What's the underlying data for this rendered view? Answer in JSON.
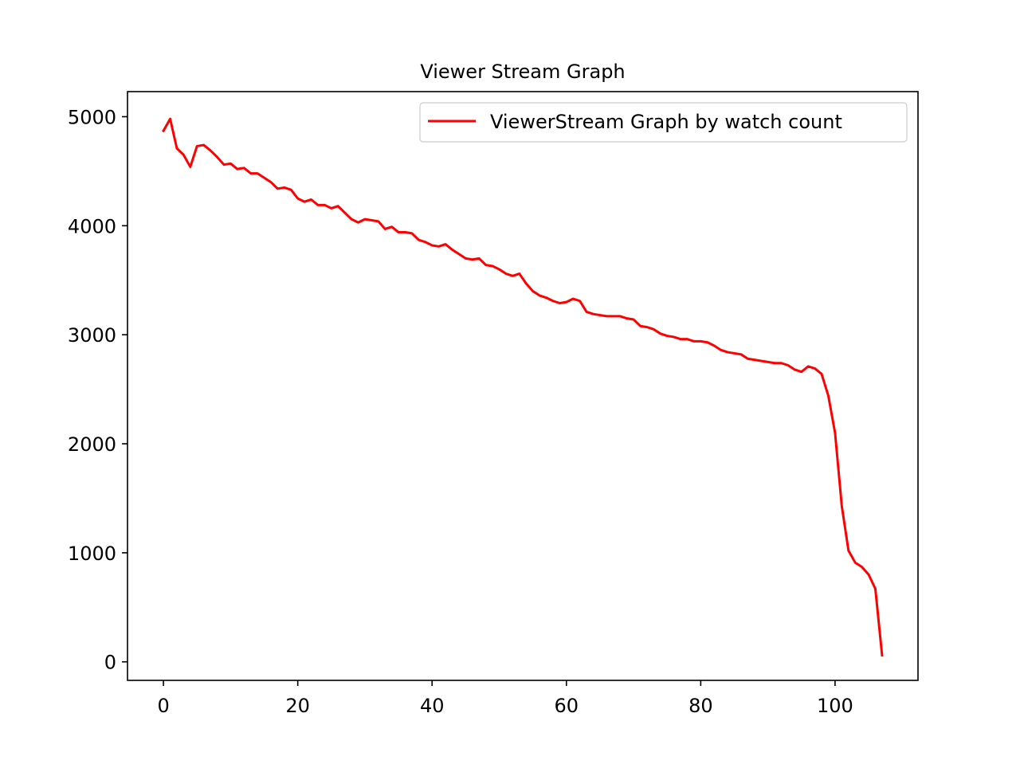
{
  "chart_data": {
    "type": "line",
    "title": "Viewer Stream Graph",
    "xlabel": "",
    "ylabel": "",
    "xlim": [
      -5.35,
      112.35
    ],
    "ylim": [
      -170,
      5230
    ],
    "x_ticks": [
      0,
      20,
      40,
      60,
      80,
      100
    ],
    "y_ticks": [
      0,
      1000,
      2000,
      3000,
      4000,
      5000
    ],
    "grid": false,
    "legend_position": "upper right",
    "series": [
      {
        "name": "ViewerStream Graph by watch count",
        "color": "#ff0000",
        "x": [
          0,
          1,
          2,
          3,
          4,
          5,
          6,
          7,
          8,
          9,
          10,
          11,
          12,
          13,
          14,
          15,
          16,
          17,
          18,
          19,
          20,
          21,
          22,
          23,
          24,
          25,
          26,
          27,
          28,
          29,
          30,
          31,
          32,
          33,
          34,
          35,
          36,
          37,
          38,
          39,
          40,
          41,
          42,
          43,
          44,
          45,
          46,
          47,
          48,
          49,
          50,
          51,
          52,
          53,
          54,
          55,
          56,
          57,
          58,
          59,
          60,
          61,
          62,
          63,
          64,
          65,
          66,
          67,
          68,
          69,
          70,
          71,
          72,
          73,
          74,
          75,
          76,
          77,
          78,
          79,
          80,
          81,
          82,
          83,
          84,
          85,
          86,
          87,
          88,
          89,
          90,
          91,
          92,
          93,
          94,
          95,
          96,
          97,
          98,
          99,
          100,
          101,
          102,
          103,
          104,
          105,
          106,
          107
        ],
        "values": [
          4870,
          4980,
          4710,
          4650,
          4540,
          4730,
          4740,
          4690,
          4630,
          4560,
          4570,
          4520,
          4530,
          4480,
          4480,
          4440,
          4400,
          4340,
          4350,
          4330,
          4250,
          4220,
          4240,
          4190,
          4190,
          4160,
          4180,
          4120,
          4060,
          4030,
          4060,
          4050,
          4040,
          3970,
          3990,
          3940,
          3940,
          3930,
          3870,
          3850,
          3820,
          3810,
          3830,
          3780,
          3740,
          3700,
          3690,
          3700,
          3640,
          3630,
          3600,
          3560,
          3540,
          3560,
          3470,
          3400,
          3360,
          3340,
          3310,
          3290,
          3300,
          3330,
          3310,
          3210,
          3190,
          3180,
          3170,
          3170,
          3170,
          3150,
          3140,
          3080,
          3070,
          3050,
          3010,
          2990,
          2980,
          2960,
          2960,
          2940,
          2940,
          2930,
          2900,
          2860,
          2840,
          2830,
          2820,
          2780,
          2770,
          2760,
          2750,
          2740,
          2740,
          2720,
          2680,
          2660,
          2710,
          2690,
          2640,
          2440,
          2100,
          1430,
          1020,
          910,
          870,
          800,
          670,
          60
        ]
      }
    ]
  }
}
